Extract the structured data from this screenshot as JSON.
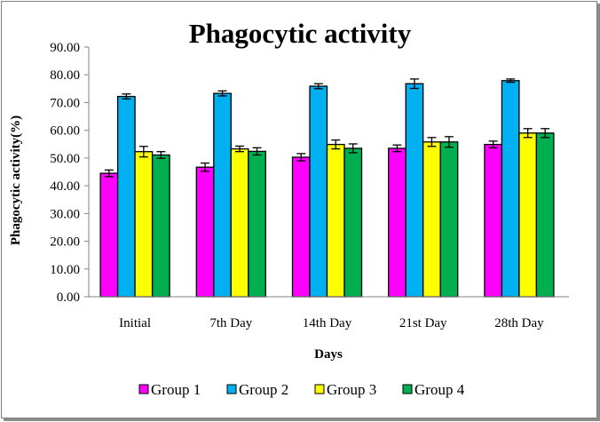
{
  "chart_data": {
    "type": "bar",
    "title": "Phagocytic activity",
    "xlabel": "Days",
    "ylabel": "Phagocytic activity(%)",
    "ylim": [
      0,
      90
    ],
    "yticks": [
      "0.00",
      "10.00",
      "20.00",
      "30.00",
      "40.00",
      "50.00",
      "60.00",
      "70.00",
      "80.00",
      "90.00"
    ],
    "ytick_values": [
      0,
      10,
      20,
      30,
      40,
      50,
      60,
      70,
      80,
      90
    ],
    "grid": false,
    "legend_position": "bottom",
    "categories": [
      "Initial",
      "7th Day",
      "14th Day",
      "21st Day",
      "28th Day"
    ],
    "series": [
      {
        "name": "Group 1",
        "color": "#ff00ff",
        "values": [
          44.5,
          46.7,
          50.3,
          53.5,
          54.9
        ],
        "errors": [
          1.2,
          1.5,
          1.3,
          1.2,
          1.2
        ]
      },
      {
        "name": "Group 2",
        "color": "#00b0f0",
        "values": [
          72.2,
          73.3,
          75.9,
          76.8,
          77.9
        ],
        "errors": [
          0.9,
          0.9,
          0.9,
          1.7,
          0.6
        ]
      },
      {
        "name": "Group 3",
        "color": "#ffff00",
        "values": [
          52.3,
          53.3,
          54.9,
          55.8,
          59.0
        ],
        "errors": [
          1.9,
          1.0,
          1.6,
          1.6,
          1.6
        ]
      },
      {
        "name": "Group 4",
        "color": "#00b050",
        "values": [
          51.1,
          52.4,
          53.5,
          55.8,
          59.0
        ],
        "errors": [
          1.2,
          1.3,
          1.6,
          1.9,
          1.6
        ]
      }
    ]
  }
}
